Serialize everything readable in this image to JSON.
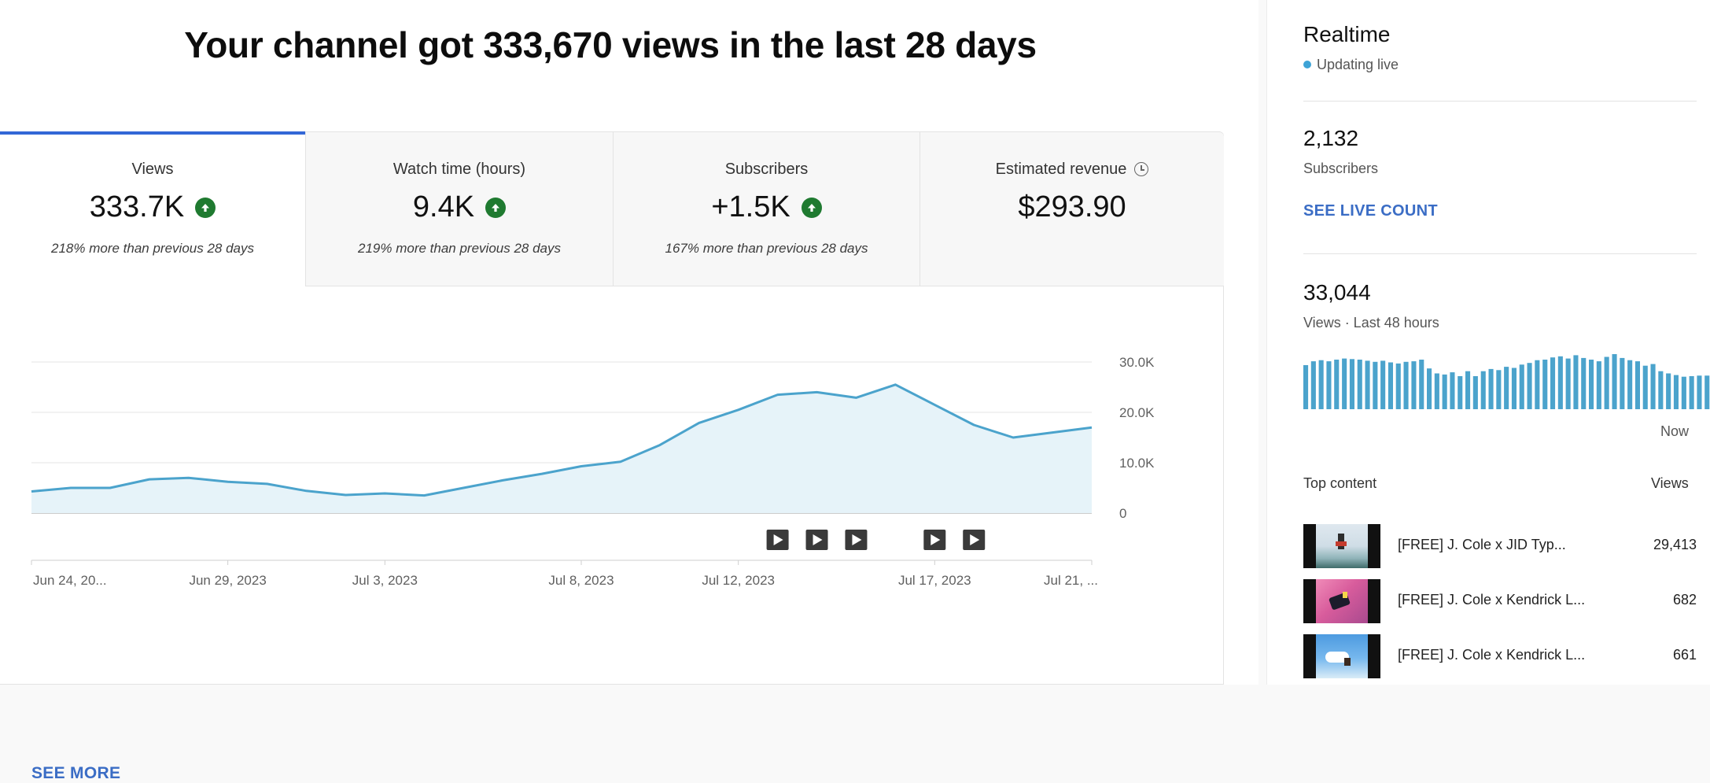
{
  "headline": "Your channel got 333,670 views in the last 28 days",
  "tabs": [
    {
      "label": "Views",
      "value": "333.7K",
      "note": "218% more than previous 28 days",
      "trend": "up"
    },
    {
      "label": "Watch time (hours)",
      "value": "9.4K",
      "note": "219% more than previous 28 days",
      "trend": "up"
    },
    {
      "label": "Subscribers",
      "value": "+1.5K",
      "note": "167% more than previous 28 days",
      "trend": "up"
    },
    {
      "label": "Estimated revenue",
      "value": "$293.90",
      "note": "",
      "trend": "none"
    }
  ],
  "see_more": "SEE MORE",
  "colors": {
    "accent": "#3367d6",
    "line": "#4ba3cc",
    "area": "#e6f3f9",
    "trend_up": "#1f7a30",
    "link": "#3b6dc5"
  },
  "chart_data": {
    "type": "area",
    "x": [
      "Jun 24, 2023",
      "Jun 25",
      "Jun 26",
      "Jun 27",
      "Jun 28",
      "Jun 29, 2023",
      "Jun 30",
      "Jul 1",
      "Jul 2",
      "Jul 3, 2023",
      "Jul 4",
      "Jul 5",
      "Jul 6",
      "Jul 7",
      "Jul 8, 2023",
      "Jul 9",
      "Jul 10",
      "Jul 11",
      "Jul 12, 2023",
      "Jul 13",
      "Jul 14",
      "Jul 15",
      "Jul 16",
      "Jul 17, 2023",
      "Jul 18",
      "Jul 19",
      "Jul 20",
      "Jul 21, 2023"
    ],
    "values": [
      4300,
      5000,
      5000,
      6700,
      7000,
      6200,
      5800,
      4400,
      3600,
      3900,
      3500,
      5000,
      6500,
      7800,
      9300,
      10200,
      13500,
      17900,
      20500,
      23500,
      24000,
      22900,
      25500,
      21500,
      17500,
      15000,
      16000,
      17000
    ],
    "x_tick_labels": [
      "Jun 24, 20...",
      "Jun 29, 2023",
      "Jul 3, 2023",
      "Jul 8, 2023",
      "Jul 12, 2023",
      "Jul 17, 2023",
      "Jul 21, ..."
    ],
    "y_ticks": [
      "30.0K",
      "20.0K",
      "10.0K",
      "0"
    ],
    "ylim": [
      0,
      30000
    ],
    "grid": true,
    "video_markers": [
      "Jul 13",
      "Jul 14",
      "Jul 15",
      "Jul 17",
      "Jul 18"
    ]
  },
  "realtime": {
    "title": "Realtime",
    "status": "Updating live",
    "subscribers_value": "2,132",
    "subscribers_label": "Subscribers",
    "see_live_count": "SEE LIVE COUNT",
    "views_value": "33,044",
    "views_label": "Views · Last 48 hours",
    "now_label": "Now",
    "hourly_views_relative": [
      0.8,
      0.87,
      0.89,
      0.87,
      0.9,
      0.92,
      0.91,
      0.9,
      0.88,
      0.86,
      0.88,
      0.85,
      0.83,
      0.86,
      0.87,
      0.9,
      0.74,
      0.65,
      0.63,
      0.67,
      0.6,
      0.69,
      0.6,
      0.69,
      0.73,
      0.71,
      0.77,
      0.75,
      0.81,
      0.84,
      0.89,
      0.9,
      0.94,
      0.96,
      0.92,
      0.98,
      0.93,
      0.9,
      0.87,
      0.95,
      1.0,
      0.93,
      0.89,
      0.87,
      0.79,
      0.82,
      0.69,
      0.65,
      0.62,
      0.59,
      0.6,
      0.61,
      0.61
    ],
    "top_content_label": "Top content",
    "views_column_label": "Views",
    "top_content": [
      {
        "title": "[FREE] J. Cole x JID Typ...",
        "views": "29,413"
      },
      {
        "title": "[FREE] J. Cole x Kendrick L...",
        "views": "682"
      },
      {
        "title": "[FREE] J. Cole x Kendrick L...",
        "views": "661"
      }
    ]
  }
}
